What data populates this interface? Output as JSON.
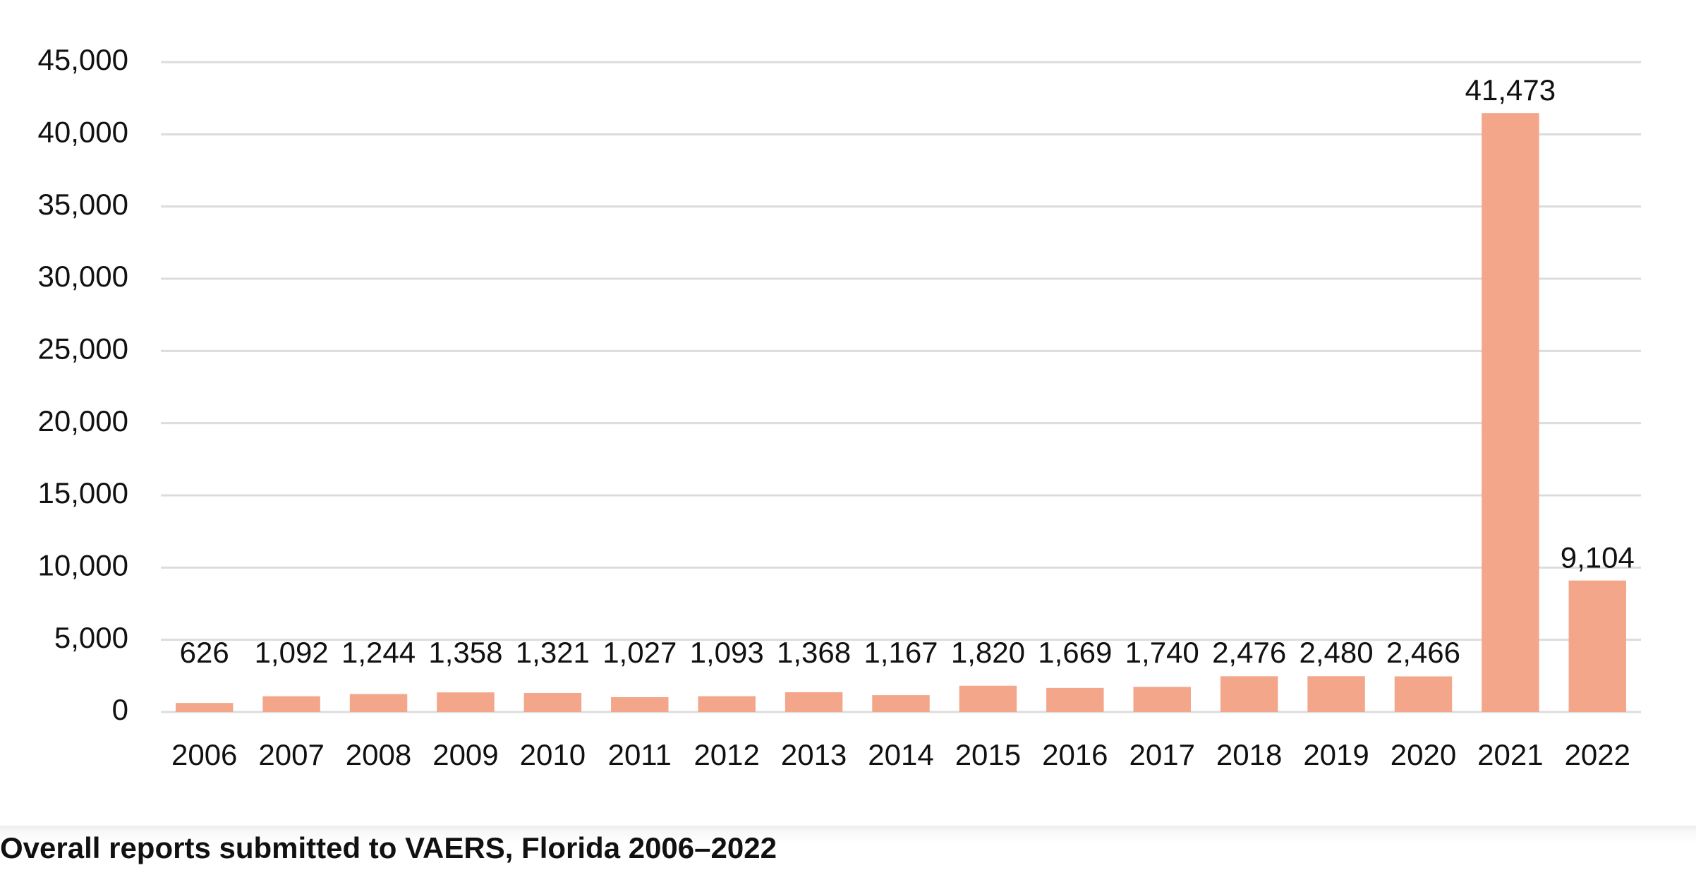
{
  "chart_data": {
    "type": "bar",
    "categories": [
      "2006",
      "2007",
      "2008",
      "2009",
      "2010",
      "2011",
      "2012",
      "2013",
      "2014",
      "2015",
      "2016",
      "2017",
      "2018",
      "2019",
      "2020",
      "2021",
      "2022"
    ],
    "values": [
      626,
      1092,
      1244,
      1358,
      1321,
      1027,
      1093,
      1368,
      1167,
      1820,
      1669,
      1740,
      2476,
      2480,
      2466,
      41473,
      9104
    ],
    "data_labels": [
      "626",
      "1,092",
      "1,244",
      "1,358",
      "1,321",
      "1,027",
      "1,093",
      "1,368",
      "1,167",
      "1,820",
      "1,669",
      "1,740",
      "2,476",
      "2,480",
      "2,466",
      "41,473",
      "9,104"
    ],
    "ylim": [
      0,
      45000
    ],
    "yticks": [
      0,
      5000,
      10000,
      15000,
      20000,
      25000,
      30000,
      35000,
      40000,
      45000
    ],
    "ytick_labels": [
      "0",
      "5,000",
      "10,000",
      "15,000",
      "20,000",
      "25,000",
      "30,000",
      "35,000",
      "40,000",
      "45,000"
    ],
    "grid": true,
    "bar_color": "#f4a68b",
    "grid_color": "#dcdcdc"
  },
  "caption": "Overall reports submitted to VAERS, Florida 2006–2022"
}
